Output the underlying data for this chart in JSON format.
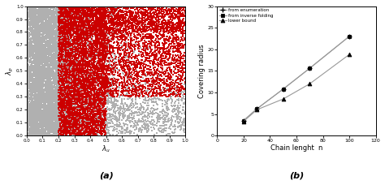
{
  "subplot_a": {
    "xlabel": "λ_u",
    "ylabel": "λ_p",
    "label": "(a)",
    "xlim": [
      0.0,
      1.0
    ],
    "ylim": [
      0.0,
      1.0
    ],
    "xticks": [
      0.0,
      0.1,
      0.2,
      0.3,
      0.4,
      0.5,
      0.6,
      0.7,
      0.8,
      0.9,
      1.0
    ],
    "yticks": [
      0.0,
      0.1,
      0.2,
      0.3,
      0.4,
      0.5,
      0.6,
      0.7,
      0.8,
      0.9,
      1.0
    ],
    "gray_color": "#b0b0b0",
    "red_color": "#cc0000",
    "n_gray": 12000,
    "n_red": 8000,
    "seed_gray": 42,
    "seed_red": 7
  },
  "subplot_b": {
    "xlabel": "Chain lenght  n",
    "ylabel": "Covering radius",
    "label": "(b)",
    "xlim": [
      0,
      120
    ],
    "ylim": [
      0,
      30
    ],
    "xticks": [
      0,
      20,
      40,
      60,
      80,
      100,
      120
    ],
    "yticks": [
      0,
      5,
      10,
      15,
      20,
      25,
      30
    ],
    "x_enum": [
      20,
      30,
      50,
      70,
      100
    ],
    "y_enum": [
      3.5,
      6.2,
      10.8,
      15.6,
      23.0
    ],
    "x_lower": [
      20,
      30,
      50,
      70,
      100
    ],
    "y_lower": [
      3.3,
      6.0,
      8.5,
      12.0,
      18.8
    ],
    "legend_entries": [
      "from enumeration",
      "from inverse folding",
      "lower bound"
    ],
    "line_color": "#999999"
  }
}
